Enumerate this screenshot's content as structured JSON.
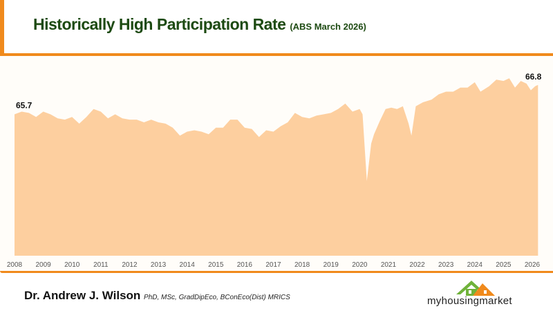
{
  "header": {
    "title": "Historically High Participation Rate",
    "subtitle": "(ABS March 2026)"
  },
  "chart_data": {
    "type": "area",
    "title": "Historically High Participation Rate",
    "subtitle": "(ABS March 2026)",
    "xlabel": "",
    "ylabel": "",
    "grid": false,
    "legend": "none",
    "fill_color": "#fdcf9f",
    "ylim": [
      60.4,
      67.3
    ],
    "xlim": [
      2008,
      2026.2
    ],
    "x_ticks": [
      "2008",
      "2009",
      "2010",
      "2011",
      "2012",
      "2013",
      "2014",
      "2015",
      "2016",
      "2017",
      "2018",
      "2019",
      "2020",
      "2021",
      "2022",
      "2023",
      "2024",
      "2025",
      "2026"
    ],
    "annotations": [
      {
        "label": "65.7",
        "x": 2008.0,
        "y": 65.7
      },
      {
        "label": "66.8",
        "x": 2026.2,
        "y": 66.8
      }
    ],
    "x": [
      2008.0,
      2008.25,
      2008.5,
      2008.75,
      2009.0,
      2009.25,
      2009.5,
      2009.75,
      2010.0,
      2010.25,
      2010.5,
      2010.75,
      2011.0,
      2011.25,
      2011.5,
      2011.75,
      2012.0,
      2012.25,
      2012.5,
      2012.75,
      2013.0,
      2013.25,
      2013.5,
      2013.75,
      2014.0,
      2014.25,
      2014.5,
      2014.75,
      2015.0,
      2015.25,
      2015.5,
      2015.75,
      2016.0,
      2016.25,
      2016.5,
      2016.75,
      2017.0,
      2017.25,
      2017.5,
      2017.75,
      2018.0,
      2018.25,
      2018.5,
      2018.75,
      2019.0,
      2019.25,
      2019.5,
      2019.75,
      2020.0,
      2020.1,
      2020.25,
      2020.4,
      2020.5,
      2020.7,
      2020.9,
      2021.1,
      2021.3,
      2021.5,
      2021.7,
      2021.8,
      2021.95,
      2022.2,
      2022.5,
      2022.75,
      2023.0,
      2023.25,
      2023.5,
      2023.75,
      2024.0,
      2024.2,
      2024.5,
      2024.75,
      2025.0,
      2025.2,
      2025.4,
      2025.6,
      2025.8,
      2025.95,
      2026.1,
      2026.2
    ],
    "y": [
      65.7,
      65.8,
      65.75,
      65.6,
      65.8,
      65.7,
      65.55,
      65.5,
      65.6,
      65.35,
      65.6,
      65.9,
      65.8,
      65.55,
      65.7,
      65.55,
      65.5,
      65.5,
      65.4,
      65.5,
      65.4,
      65.35,
      65.2,
      64.9,
      65.05,
      65.1,
      65.05,
      64.95,
      65.2,
      65.2,
      65.5,
      65.5,
      65.2,
      65.15,
      64.85,
      65.1,
      65.05,
      65.25,
      65.4,
      65.75,
      65.6,
      65.55,
      65.65,
      65.7,
      65.75,
      65.9,
      66.1,
      65.8,
      65.9,
      65.7,
      63.2,
      64.6,
      64.95,
      65.45,
      65.9,
      65.95,
      65.9,
      66.0,
      65.35,
      64.9,
      66.0,
      66.15,
      66.25,
      66.45,
      66.55,
      66.55,
      66.7,
      66.7,
      66.9,
      66.55,
      66.75,
      67.0,
      66.95,
      67.05,
      66.7,
      66.95,
      66.85,
      66.6,
      66.75,
      66.8
    ]
  },
  "footer": {
    "author": "Dr. Andrew J. Wilson",
    "credentials": "PhD, MSc, GradDipEco, BConEco(Dist) MRICS",
    "logo_text": "myhousingmarket",
    "accent_color": "#f08a1c"
  }
}
